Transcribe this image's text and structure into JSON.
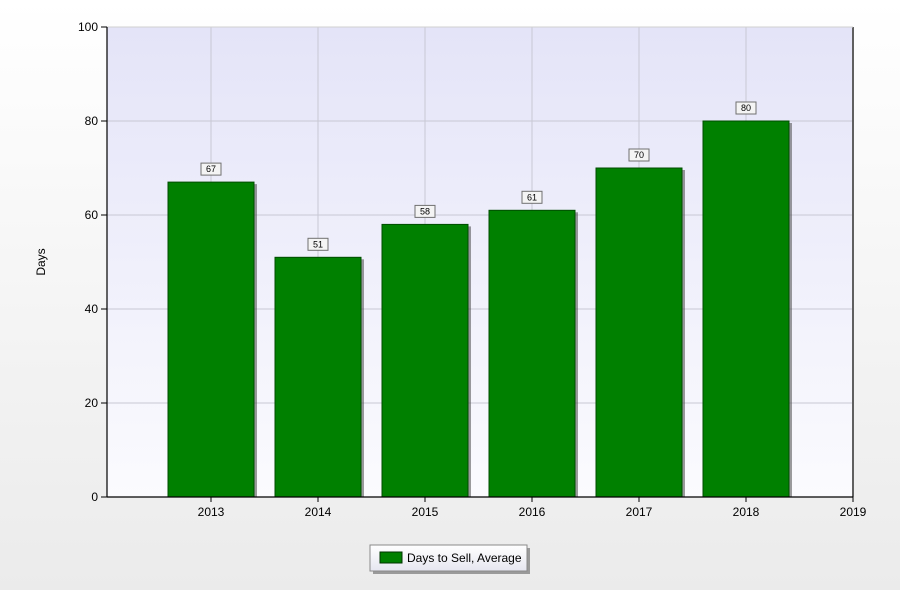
{
  "chart_data": {
    "type": "bar",
    "title": "",
    "xlabel": "",
    "ylabel": "Days",
    "categories": [
      "2013",
      "2014",
      "2015",
      "2016",
      "2017",
      "2018"
    ],
    "x_ticks": [
      "2013",
      "2014",
      "2015",
      "2016",
      "2017",
      "2018",
      "2019"
    ],
    "series": [
      {
        "name": "Days to Sell, Average",
        "values": [
          67,
          51,
          58,
          61,
          70,
          80
        ],
        "color": "#008000"
      }
    ],
    "data_labels": [
      "67",
      "51",
      "58",
      "61",
      "70",
      "80"
    ],
    "y_ticks": [
      0,
      20,
      40,
      60,
      80,
      100
    ],
    "ylim": [
      0,
      100
    ],
    "grid": true,
    "legend_position": "bottom-center",
    "plot_background": "#e8e8f8"
  }
}
